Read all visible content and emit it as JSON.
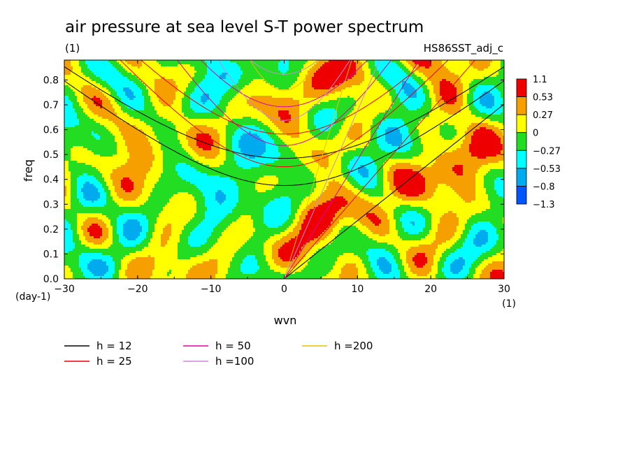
{
  "chart_data": {
    "type": "heatmap",
    "title": "air pressure at sea level S-T power spectrum",
    "subtitle_left": "(1)",
    "subtitle_right": "HS86SST_adj_c",
    "xlabel": "wvn",
    "ylabel": "freq",
    "x_unit": "(1)",
    "y_unit": "(day-1)",
    "xlim": [
      -30,
      30
    ],
    "ylim": [
      0,
      0.88
    ],
    "x_ticks": [
      -30,
      -20,
      -10,
      0,
      10,
      20,
      30
    ],
    "x_tick_labels": [
      "−30",
      "−20",
      "−10",
      "0",
      "10",
      "20",
      "30"
    ],
    "y_ticks": [
      0,
      0.1,
      0.2,
      0.3,
      0.4,
      0.5,
      0.6,
      0.7,
      0.8
    ],
    "y_tick_labels": [
      "0.0",
      "0.1",
      "0.2",
      "0.3",
      "0.4",
      "0.5",
      "0.6",
      "0.7",
      "0.8"
    ],
    "colorbar": {
      "labels": [
        "1.1",
        "0.53",
        "0.27",
        "0",
        "−0.27",
        "−0.53",
        "−0.8",
        "−1.3"
      ],
      "colors": [
        "#ee0000",
        "#f5a000",
        "#ffff00",
        "#22dd22",
        "#00ffff",
        "#00aaee",
        "#0055ff"
      ]
    },
    "field_levels": [
      -1.3,
      -0.8,
      -0.53,
      -0.27,
      0,
      0.27,
      0.53,
      1.1
    ],
    "dispersion_curves": [
      {
        "label": "h = 12",
        "h": 12,
        "color": "#000000"
      },
      {
        "label": "h = 25",
        "h": 25,
        "color": "#ee0000"
      },
      {
        "label": "h = 50",
        "h": 50,
        "color": "#dd00aa"
      },
      {
        "label": "h =100",
        "h": 100,
        "color": "#cc88dd"
      },
      {
        "label": "h =200",
        "h": 200,
        "color": "#e8c000"
      }
    ],
    "legend_placement": "bottom",
    "grid": false
  }
}
